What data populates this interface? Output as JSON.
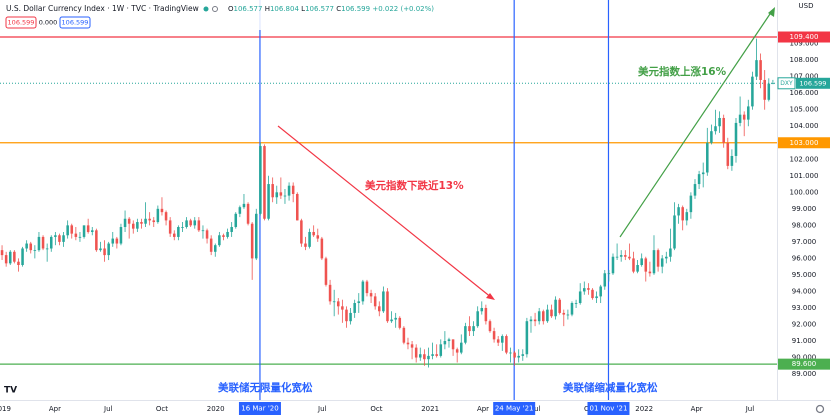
{
  "chart_data": {
    "type": "candlestick",
    "title": "U.S. Dollar Currency Index · 1W · TVC · TradingView",
    "ohlc": [
      {
        "label": "O",
        "value": "106.577"
      },
      {
        "label": "H",
        "value": "106.804"
      },
      {
        "label": "L",
        "value": "106.577"
      },
      {
        "label": "C",
        "value": "106.599"
      }
    ],
    "change": "+0.022 (+0.02%)",
    "header_boxes": [
      "106.599",
      "0.000",
      "106.599"
    ],
    "currency": "USD",
    "symbol": "DXY",
    "last_price": {
      "value": 106.599,
      "label": "106.599"
    },
    "up_color": "#26a69a",
    "down_color": "#ef5350",
    "grid": true,
    "xlim": [
      -0.5,
      189
    ],
    "ylim": [
      87.43,
      111.64
    ],
    "yticks": [
      {
        "value": 89,
        "label": "89.000"
      },
      {
        "value": 90,
        "label": "90.000"
      },
      {
        "value": 91,
        "label": "91.000"
      },
      {
        "value": 92,
        "label": "92.000"
      },
      {
        "value": 93,
        "label": "93.000"
      },
      {
        "value": 94,
        "label": "94.000"
      },
      {
        "value": 95,
        "label": "95.000"
      },
      {
        "value": 96,
        "label": "96.000"
      },
      {
        "value": 97,
        "label": "97.000"
      },
      {
        "value": 98,
        "label": "98.000"
      },
      {
        "value": 99,
        "label": "99.000"
      },
      {
        "value": 100,
        "label": "100.000"
      },
      {
        "value": 101,
        "label": "101.000"
      },
      {
        "value": 102,
        "label": "102.000"
      },
      {
        "value": 104,
        "label": "104.000"
      },
      {
        "value": 105,
        "label": "105.000"
      },
      {
        "value": 106,
        "label": "106.000"
      },
      {
        "value": 107,
        "label": "107.000"
      },
      {
        "value": 108,
        "label": "108.000"
      },
      {
        "value": 109,
        "label": "109.000"
      }
    ],
    "xticks": [
      {
        "value": 0,
        "label": "2019"
      },
      {
        "value": 12.9,
        "label": "Apr"
      },
      {
        "value": 25.9,
        "label": "Jul"
      },
      {
        "value": 39,
        "label": "Oct"
      },
      {
        "value": 52.1,
        "label": "2020"
      },
      {
        "value": 78.1,
        "label": "Jul"
      },
      {
        "value": 91.3,
        "label": "Oct"
      },
      {
        "value": 104.4,
        "label": "2021"
      },
      {
        "value": 117.3,
        "label": "Apr"
      },
      {
        "value": 130.3,
        "label": "Jul"
      },
      {
        "value": 143.4,
        "label": "Oct"
      },
      {
        "value": 156.6,
        "label": "2022"
      },
      {
        "value": 169.4,
        "label": "Apr"
      },
      {
        "value": 182.4,
        "label": "Jul"
      }
    ],
    "levels": [
      {
        "value": 109.4,
        "label": "109.400",
        "color": "#f23645"
      },
      {
        "value": 103,
        "label": "103.000",
        "color": "#ff9800"
      },
      {
        "value": 89.6,
        "label": "89.600",
        "color": "#4caf50"
      }
    ],
    "markers": [
      {
        "x": 62.9,
        "label": "16 Mar '20"
      },
      {
        "x": 124.9,
        "label": "24 May '21"
      },
      {
        "x": 147.9,
        "label": "01 Nov '21"
      }
    ],
    "marker_color": "#2962ff",
    "annotations": [
      {
        "text": "美元指数下跌近13%",
        "color": "#f23645"
      },
      {
        "text": "美元指数上涨16%",
        "color": "#43a047"
      },
      {
        "text": "美联储无限量化宽松",
        "color": "#2962ff"
      },
      {
        "text": "美联储缩减量化宽松",
        "color": "#2962ff"
      }
    ],
    "candles": [
      [
        96.5,
        96.8,
        95.9,
        96.2
      ],
      [
        96.2,
        96.4,
        95.5,
        95.7
      ],
      [
        95.7,
        96.5,
        95.6,
        96.4
      ],
      [
        96.4,
        96.5,
        95.7,
        95.8
      ],
      [
        95.8,
        96.0,
        95.2,
        95.6
      ],
      [
        95.6,
        96.7,
        95.5,
        96.6
      ],
      [
        96.6,
        97.1,
        96.4,
        96.9
      ],
      [
        96.9,
        97.0,
        96.3,
        96.5
      ],
      [
        96.5,
        96.8,
        96.0,
        96.5
      ],
      [
        96.5,
        97.6,
        96.4,
        97.3
      ],
      [
        97.3,
        97.4,
        96.5,
        96.6
      ],
      [
        96.6,
        96.9,
        95.8,
        96.6
      ],
      [
        96.6,
        97.4,
        96.4,
        97.3
      ],
      [
        97.3,
        97.6,
        96.8,
        97.4
      ],
      [
        97.4,
        97.5,
        96.8,
        97.0
      ],
      [
        97.0,
        97.6,
        96.7,
        97.4
      ],
      [
        97.4,
        98.3,
        97.2,
        98.0
      ],
      [
        98.0,
        98.1,
        97.2,
        97.5
      ],
      [
        97.5,
        97.9,
        97.1,
        97.3
      ],
      [
        97.3,
        97.6,
        97.0,
        97.3
      ],
      [
        97.3,
        98.0,
        97.2,
        98.0
      ],
      [
        98.0,
        98.4,
        97.5,
        97.6
      ],
      [
        97.6,
        97.9,
        97.4,
        97.7
      ],
      [
        97.7,
        97.8,
        96.4,
        96.5
      ],
      [
        96.5,
        97.0,
        96.4,
        96.6
      ],
      [
        96.6,
        97.1,
        95.8,
        96.2
      ],
      [
        96.2,
        97.0,
        95.9,
        96.9
      ],
      [
        96.9,
        97.6,
        96.7,
        97.2
      ],
      [
        97.2,
        97.3,
        96.6,
        96.9
      ],
      [
        96.9,
        98.1,
        96.8,
        97.9
      ],
      [
        97.9,
        98.9,
        97.6,
        98.4
      ],
      [
        98.4,
        98.5,
        97.2,
        98.1
      ],
      [
        98.1,
        98.3,
        97.5,
        97.8
      ],
      [
        97.8,
        98.4,
        97.6,
        98.2
      ],
      [
        98.2,
        98.4,
        97.8,
        98.1
      ],
      [
        98.1,
        99.4,
        97.9,
        98.4
      ],
      [
        98.4,
        98.8,
        98.0,
        98.3
      ],
      [
        98.3,
        98.5,
        97.9,
        98.2
      ],
      [
        98.2,
        99.2,
        98.1,
        99.0
      ],
      [
        99.0,
        99.7,
        98.6,
        98.8
      ],
      [
        98.8,
        98.9,
        98.0,
        98.3
      ],
      [
        98.3,
        98.5,
        97.3,
        97.5
      ],
      [
        97.5,
        97.7,
        97.1,
        97.3
      ],
      [
        97.3,
        98.0,
        97.1,
        97.9
      ],
      [
        97.9,
        98.2,
        97.6,
        97.9
      ],
      [
        97.9,
        98.5,
        97.8,
        98.3
      ],
      [
        98.3,
        98.4,
        97.9,
        98.0
      ],
      [
        98.0,
        98.5,
        97.8,
        98.3
      ],
      [
        98.3,
        98.5,
        97.6,
        97.7
      ],
      [
        97.7,
        98.0,
        97.2,
        97.7
      ],
      [
        97.7,
        97.8,
        96.9,
        97.2
      ],
      [
        97.2,
        97.4,
        96.2,
        96.4
      ],
      [
        96.4,
        96.9,
        96.1,
        96.8
      ],
      [
        96.8,
        97.6,
        96.7,
        97.4
      ],
      [
        97.4,
        97.5,
        97.1,
        97.3
      ],
      [
        97.3,
        97.8,
        97.2,
        97.6
      ],
      [
        97.6,
        98.2,
        97.3,
        97.9
      ],
      [
        97.9,
        98.8,
        97.8,
        98.7
      ],
      [
        98.7,
        99.2,
        98.5,
        99.1
      ],
      [
        99.1,
        99.9,
        99.0,
        99.3
      ],
      [
        99.3,
        99.4,
        98.0,
        98.1
      ],
      [
        98.1,
        98.2,
        94.7,
        96.0
      ],
      [
        96.0,
        99.0,
        95.9,
        98.7
      ],
      [
        98.7,
        103.0,
        98.6,
        102.8
      ],
      [
        102.8,
        102.9,
        98.3,
        98.4
      ],
      [
        98.4,
        101.0,
        98.3,
        100.5
      ],
      [
        100.5,
        100.9,
        99.4,
        99.7
      ],
      [
        99.7,
        100.4,
        99.3,
        100.0
      ],
      [
        100.0,
        100.9,
        99.6,
        99.8
      ],
      [
        99.8,
        100.2,
        99.3,
        99.8
      ],
      [
        99.8,
        100.6,
        99.5,
        100.4
      ],
      [
        100.4,
        100.6,
        99.4,
        99.9
      ],
      [
        99.9,
        100.0,
        98.3,
        98.3
      ],
      [
        98.3,
        98.4,
        96.7,
        96.9
      ],
      [
        96.9,
        97.3,
        96.5,
        96.7
      ],
      [
        96.7,
        97.8,
        96.6,
        97.6
      ],
      [
        97.6,
        98.0,
        97.3,
        97.4
      ],
      [
        97.4,
        97.8,
        97.0,
        97.2
      ],
      [
        97.2,
        97.3,
        95.9,
        96.0
      ],
      [
        96.0,
        96.1,
        94.3,
        94.4
      ],
      [
        94.4,
        94.7,
        93.2,
        93.4
      ],
      [
        93.4,
        94.1,
        92.5,
        93.4
      ],
      [
        93.4,
        93.6,
        92.6,
        93.1
      ],
      [
        93.1,
        93.5,
        92.1,
        92.9
      ],
      [
        92.9,
        93.1,
        91.8,
        92.2
      ],
      [
        92.2,
        93.0,
        92.0,
        92.7
      ],
      [
        92.7,
        93.5,
        92.4,
        93.3
      ],
      [
        93.3,
        93.9,
        92.7,
        93.4
      ],
      [
        93.4,
        94.7,
        93.2,
        94.6
      ],
      [
        94.6,
        94.7,
        93.7,
        93.9
      ],
      [
        93.9,
        94.1,
        93.3,
        93.7
      ],
      [
        93.7,
        93.9,
        92.9,
        93.1
      ],
      [
        93.1,
        93.4,
        92.5,
        92.8
      ],
      [
        92.8,
        94.3,
        92.7,
        94.0
      ],
      [
        94.0,
        94.2,
        92.1,
        92.2
      ],
      [
        92.2,
        92.8,
        92.1,
        92.3
      ],
      [
        92.3,
        92.7,
        91.8,
        92.4
      ],
      [
        92.4,
        92.5,
        91.7,
        91.8
      ],
      [
        91.8,
        91.9,
        90.8,
        90.9
      ],
      [
        90.9,
        91.2,
        90.5,
        90.8
      ],
      [
        90.8,
        91.0,
        89.9,
        90.6
      ],
      [
        90.6,
        90.8,
        89.7,
        90.0
      ],
      [
        90.0,
        90.6,
        89.8,
        90.2
      ],
      [
        90.2,
        90.5,
        89.5,
        89.9
      ],
      [
        89.9,
        90.6,
        89.4,
        90.1
      ],
      [
        90.1,
        90.9,
        89.9,
        90.2
      ],
      [
        90.2,
        90.8,
        90.0,
        90.1
      ],
      [
        90.1,
        91.1,
        90.0,
        90.8
      ],
      [
        90.8,
        91.6,
        90.5,
        91.0
      ],
      [
        91.0,
        91.2,
        90.6,
        91.1
      ],
      [
        91.1,
        91.1,
        90.1,
        90.5
      ],
      [
        90.5,
        90.6,
        89.7,
        90.3
      ],
      [
        90.3,
        91.4,
        90.2,
        90.9
      ],
      [
        90.9,
        92.1,
        90.8,
        91.9
      ],
      [
        91.9,
        92.5,
        91.3,
        91.6
      ],
      [
        91.6,
        92.2,
        91.3,
        91.9
      ],
      [
        91.9,
        93.1,
        91.8,
        92.8
      ],
      [
        92.8,
        93.4,
        92.6,
        93.0
      ],
      [
        93.0,
        93.2,
        92.0,
        92.2
      ],
      [
        92.2,
        92.3,
        91.5,
        91.6
      ],
      [
        91.6,
        91.8,
        90.9,
        91.1
      ],
      [
        91.1,
        91.3,
        90.7,
        90.9
      ],
      [
        90.9,
        91.4,
        90.4,
        91.3
      ],
      [
        91.3,
        91.4,
        90.2,
        90.3
      ],
      [
        90.3,
        90.6,
        89.7,
        90.3
      ],
      [
        90.3,
        90.4,
        89.5,
        90.0
      ],
      [
        90.0,
        90.5,
        89.7,
        90.1
      ],
      [
        90.1,
        90.5,
        89.8,
        90.2
      ],
      [
        90.2,
        92.4,
        90.0,
        92.2
      ],
      [
        92.2,
        92.5,
        91.5,
        92.3
      ],
      [
        92.3,
        92.7,
        91.9,
        92.2
      ],
      [
        92.2,
        93.0,
        92.0,
        92.8
      ],
      [
        92.8,
        92.9,
        92.0,
        92.2
      ],
      [
        92.2,
        93.2,
        92.1,
        92.9
      ],
      [
        92.9,
        93.2,
        92.4,
        92.5
      ],
      [
        92.5,
        93.7,
        92.3,
        93.5
      ],
      [
        93.5,
        93.6,
        92.6,
        92.7
      ],
      [
        92.7,
        92.9,
        91.9,
        92.6
      ],
      [
        92.6,
        92.9,
        92.3,
        92.6
      ],
      [
        92.6,
        93.4,
        92.5,
        93.3
      ],
      [
        93.3,
        93.5,
        93.0,
        93.3
      ],
      [
        93.3,
        94.5,
        93.2,
        94.0
      ],
      [
        94.0,
        94.6,
        93.8,
        94.2
      ],
      [
        94.2,
        94.5,
        93.8,
        94.1
      ],
      [
        94.1,
        94.2,
        93.5,
        93.6
      ],
      [
        93.6,
        94.0,
        93.3,
        93.7
      ],
      [
        93.7,
        94.4,
        93.3,
        94.3
      ],
      [
        94.3,
        95.3,
        94.1,
        95.1
      ],
      [
        95.1,
        95.3,
        94.6,
        95.1
      ],
      [
        95.1,
        96.3,
        95.0,
        96.1
      ],
      [
        96.1,
        96.9,
        95.9,
        96.1
      ],
      [
        96.1,
        96.5,
        95.8,
        96.2
      ],
      [
        96.2,
        96.5,
        95.9,
        96.1
      ],
      [
        96.1,
        96.9,
        95.9,
        96.0
      ],
      [
        96.0,
        96.4,
        95.1,
        95.2
      ],
      [
        95.2,
        95.9,
        95.1,
        95.6
      ],
      [
        95.6,
        96.3,
        95.5,
        96.0
      ],
      [
        96.0,
        96.1,
        94.6,
        95.2
      ],
      [
        95.2,
        95.8,
        94.9,
        95.1
      ],
      [
        95.1,
        97.4,
        95.0,
        96.5
      ],
      [
        96.5,
        96.6,
        95.2,
        95.5
      ],
      [
        95.5,
        96.2,
        95.1,
        96.0
      ],
      [
        96.0,
        96.4,
        95.7,
        96.1
      ],
      [
        96.1,
        97.8,
        95.8,
        96.6
      ],
      [
        96.6,
        99.4,
        96.5,
        98.6
      ],
      [
        98.6,
        99.3,
        98.1,
        99.1
      ],
      [
        99.1,
        99.2,
        97.7,
        98.3
      ],
      [
        98.3,
        99.0,
        98.0,
        98.8
      ],
      [
        98.8,
        100.0,
        98.4,
        99.8
      ],
      [
        99.8,
        100.8,
        99.6,
        100.5
      ],
      [
        100.5,
        101.3,
        100.2,
        101.1
      ],
      [
        101.1,
        101.8,
        100.3,
        101.2
      ],
      [
        101.2,
        103.9,
        101.0,
        103.0
      ],
      [
        103.0,
        104.1,
        102.9,
        103.7
      ],
      [
        103.7,
        105.0,
        103.5,
        104.0
      ],
      [
        104.0,
        104.9,
        103.6,
        104.5
      ],
      [
        104.5,
        104.7,
        102.7,
        103.0
      ],
      [
        103.0,
        103.3,
        101.4,
        101.6
      ],
      [
        101.6,
        102.6,
        101.3,
        102.2
      ],
      [
        102.2,
        104.5,
        101.8,
        104.2
      ],
      [
        104.2,
        105.8,
        104.0,
        104.7
      ],
      [
        104.7,
        104.9,
        103.4,
        104.4
      ],
      [
        104.4,
        105.6,
        104.0,
        105.2
      ],
      [
        105.2,
        107.3,
        105.0,
        107.0
      ],
      [
        107.0,
        109.3,
        106.8,
        108.0
      ],
      [
        108.0,
        108.4,
        106.3,
        106.8
      ],
      [
        106.8,
        107.4,
        105.0,
        105.6
      ],
      [
        105.6,
        106.9,
        105.5,
        106.577
      ],
      [
        106.577,
        106.804,
        106.577,
        106.599
      ]
    ]
  }
}
